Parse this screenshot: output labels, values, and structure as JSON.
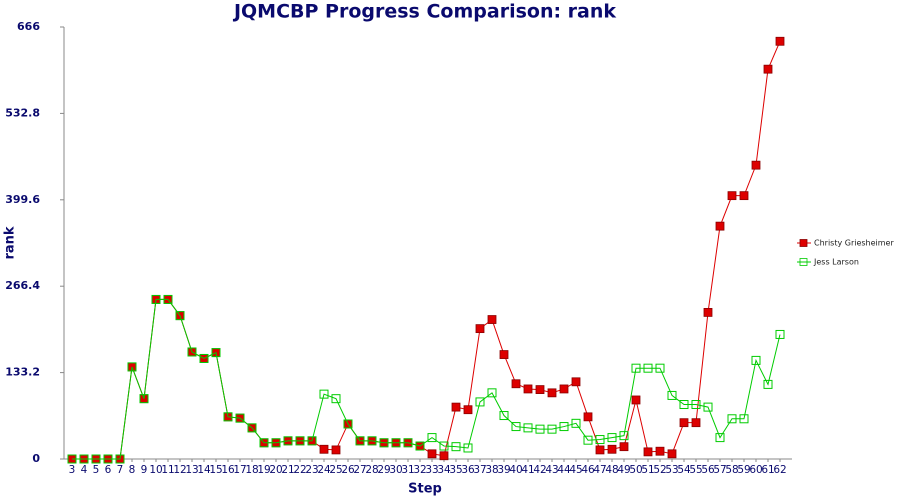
{
  "chart_data": {
    "type": "line",
    "title": "JQMCBP Progress Comparison: rank",
    "x_label": "Step",
    "y_label": "rank",
    "categories": [
      "3",
      "4",
      "5",
      "6",
      "7",
      "8",
      "9",
      "10",
      "11",
      "12",
      "13",
      "14",
      "15",
      "16",
      "17",
      "18",
      "19",
      "20",
      "21",
      "22",
      "23",
      "24",
      "25",
      "26",
      "27",
      "28",
      "29",
      "30",
      "31",
      "32",
      "33",
      "34",
      "35",
      "36",
      "37",
      "38",
      "39",
      "40",
      "41",
      "42",
      "43",
      "44",
      "45",
      "46",
      "47",
      "48",
      "49",
      "50",
      "51",
      "52",
      "53",
      "54",
      "55",
      "56",
      "57",
      "58",
      "59",
      "60",
      "61",
      "62"
    ],
    "ylim": [
      0,
      666
    ],
    "yticks": [
      0,
      133.2,
      266.4,
      399.6,
      532.8,
      666
    ],
    "legend": "right",
    "series": [
      {
        "name": "Christy Griesheimer",
        "color": "#dd0000",
        "values": [
          0,
          0,
          0,
          0,
          0,
          142,
          93,
          246,
          246,
          221,
          165,
          155,
          164,
          65,
          63,
          48,
          25,
          25,
          28,
          28,
          28,
          15,
          14,
          54,
          28,
          28,
          25,
          25,
          25,
          20,
          8,
          5,
          80,
          76,
          201,
          215,
          161,
          116,
          108,
          107,
          102,
          108,
          119,
          65,
          14,
          15,
          19,
          91,
          11,
          12,
          8,
          56,
          56,
          226,
          359,
          406,
          406,
          453,
          601,
          644
        ]
      },
      {
        "name": "Jess Larson",
        "color": "#00cc00",
        "values": [
          0,
          0,
          0,
          0,
          0,
          142,
          93,
          246,
          246,
          221,
          165,
          155,
          164,
          65,
          63,
          48,
          25,
          25,
          28,
          28,
          28,
          100,
          93,
          54,
          28,
          28,
          25,
          25,
          25,
          20,
          33,
          20,
          19,
          17,
          88,
          102,
          67,
          50,
          48,
          46,
          46,
          50,
          55,
          29,
          30,
          33,
          36,
          140,
          140,
          140,
          98,
          84,
          84,
          80,
          33,
          62,
          62,
          152,
          115,
          192
        ]
      }
    ]
  }
}
